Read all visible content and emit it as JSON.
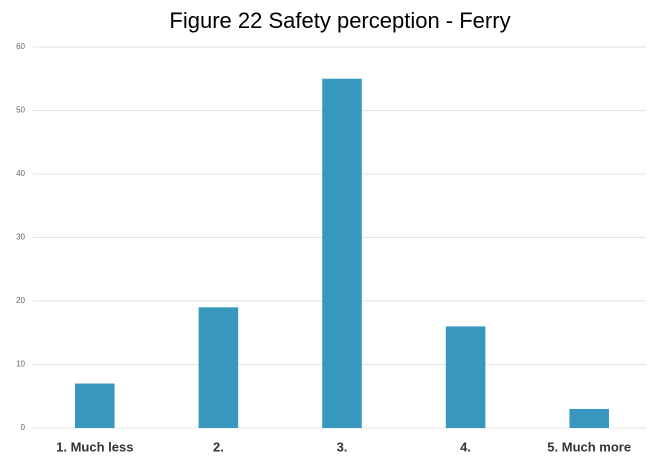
{
  "chart_data": {
    "type": "bar",
    "title": "Figure 22 Safety perception - Ferry",
    "categories": [
      "1. Much less",
      "2.",
      "3.",
      "4.",
      "5. Much more"
    ],
    "values": [
      7,
      19,
      55,
      16,
      3
    ],
    "color": "#3797bf",
    "ylim": [
      0,
      60
    ],
    "yticks": [
      0,
      10,
      20,
      30,
      40,
      50,
      60
    ],
    "grid": true
  }
}
